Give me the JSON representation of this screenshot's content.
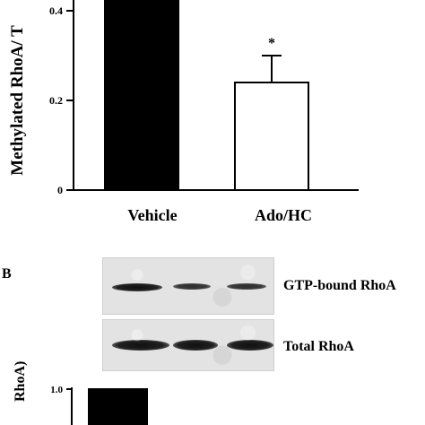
{
  "chart_data": [
    {
      "type": "bar",
      "categories": [
        "Vehicle",
        "Ado/HC"
      ],
      "values": [
        0.48,
        0.24
      ],
      "errors": [
        null,
        0.06
      ],
      "significance": [
        "",
        "*"
      ],
      "ylabel": "Methylated RhoA/ T",
      "yticks": [
        "0",
        "0.2",
        "0.4"
      ],
      "ylim": [
        0,
        0.48
      ],
      "bar_colors": [
        "#000000",
        "#ffffff"
      ]
    },
    {
      "type": "bar",
      "categories": [
        ""
      ],
      "values": [
        1.0
      ],
      "ylabel": "RhoA)",
      "yticks": [
        "1.0"
      ],
      "ylim": [
        0,
        1.0
      ]
    }
  ],
  "panel_b": {
    "letter": "B",
    "blots": [
      {
        "label": "GTP-bound RhoA",
        "band_strength": [
          1.0,
          0.7,
          0.7
        ]
      },
      {
        "label": "Total RhoA",
        "band_strength": [
          1.0,
          1.0,
          1.0
        ]
      }
    ]
  }
}
